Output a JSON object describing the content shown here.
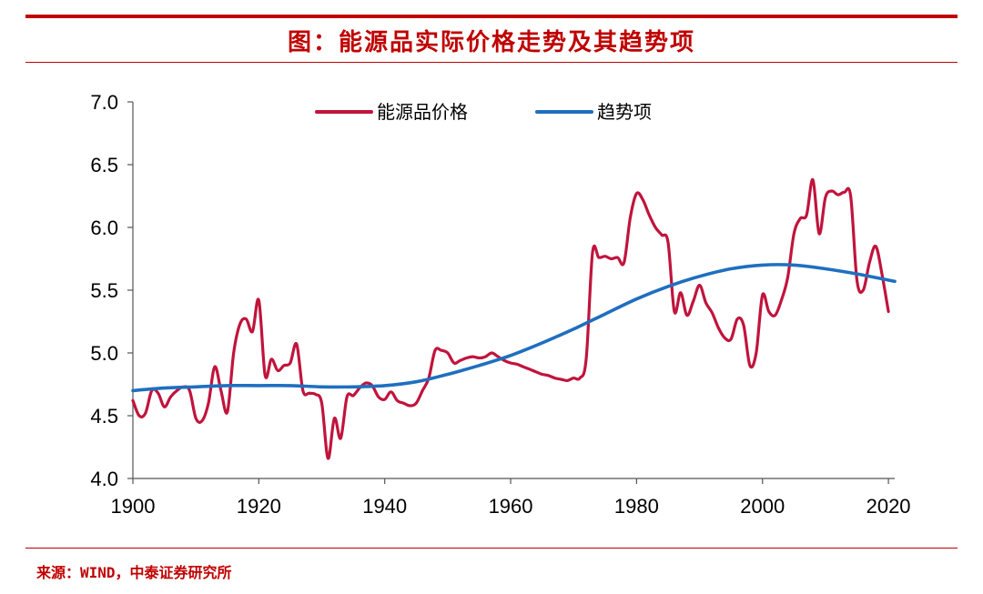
{
  "header": {
    "title": "图：能源品实际价格走势及其趋势项",
    "accent_color": "#c00000"
  },
  "footer": {
    "source": "来源：WIND，中泰证券研究所"
  },
  "chart_data": {
    "type": "line",
    "title": "图：能源品实际价格走势及其趋势项",
    "xlabel": "",
    "ylabel": "",
    "xlim": [
      1900,
      2021
    ],
    "ylim": [
      4.0,
      7.0
    ],
    "x_ticks": [
      "1900",
      "1920",
      "1940",
      "1960",
      "1980",
      "2000",
      "2020"
    ],
    "y_ticks": [
      "4.0",
      "4.5",
      "5.0",
      "5.5",
      "6.0",
      "6.5",
      "7.0"
    ],
    "grid": false,
    "legend": "top-center",
    "series": [
      {
        "name": "能源品价格",
        "color": "#c0143c",
        "x": [
          1900,
          1901,
          1902,
          1903,
          1904,
          1905,
          1906,
          1907,
          1908,
          1909,
          1910,
          1911,
          1912,
          1913,
          1914,
          1915,
          1916,
          1917,
          1918,
          1919,
          1920,
          1921,
          1922,
          1923,
          1924,
          1925,
          1926,
          1927,
          1928,
          1929,
          1930,
          1931,
          1932,
          1933,
          1934,
          1935,
          1936,
          1937,
          1938,
          1939,
          1940,
          1941,
          1942,
          1943,
          1944,
          1945,
          1946,
          1947,
          1948,
          1949,
          1950,
          1951,
          1952,
          1953,
          1954,
          1955,
          1956,
          1957,
          1958,
          1959,
          1960,
          1961,
          1962,
          1963,
          1964,
          1965,
          1966,
          1967,
          1968,
          1969,
          1970,
          1971,
          1972,
          1973,
          1974,
          1975,
          1976,
          1977,
          1978,
          1979,
          1980,
          1981,
          1982,
          1983,
          1984,
          1985,
          1986,
          1987,
          1988,
          1989,
          1990,
          1991,
          1992,
          1993,
          1994,
          1995,
          1996,
          1997,
          1998,
          1999,
          2000,
          2001,
          2002,
          2003,
          2004,
          2005,
          2006,
          2007,
          2008,
          2009,
          2010,
          2011,
          2012,
          2013,
          2014,
          2015,
          2016,
          2017,
          2018,
          2019,
          2020
        ],
        "y": [
          4.62,
          4.5,
          4.52,
          4.7,
          4.68,
          4.57,
          4.65,
          4.7,
          4.73,
          4.7,
          4.48,
          4.46,
          4.6,
          4.89,
          4.7,
          4.53,
          5.0,
          5.23,
          5.27,
          5.17,
          5.42,
          4.82,
          4.95,
          4.86,
          4.9,
          4.92,
          5.07,
          4.7,
          4.68,
          4.67,
          4.6,
          4.16,
          4.48,
          4.32,
          4.65,
          4.66,
          4.72,
          4.76,
          4.74,
          4.65,
          4.63,
          4.69,
          4.62,
          4.6,
          4.58,
          4.6,
          4.7,
          4.8,
          5.02,
          5.02,
          5.0,
          4.92,
          4.94,
          4.96,
          4.97,
          4.96,
          4.97,
          5.0,
          4.97,
          4.94,
          4.92,
          4.91,
          4.89,
          4.87,
          4.85,
          4.83,
          4.82,
          4.8,
          4.79,
          4.78,
          4.8,
          4.8,
          4.95,
          5.8,
          5.76,
          5.77,
          5.75,
          5.76,
          5.72,
          6.08,
          6.27,
          6.22,
          6.1,
          6.0,
          5.94,
          5.88,
          5.33,
          5.48,
          5.3,
          5.41,
          5.54,
          5.4,
          5.32,
          5.2,
          5.12,
          5.11,
          5.27,
          5.22,
          4.9,
          5.0,
          5.46,
          5.33,
          5.3,
          5.42,
          5.6,
          5.95,
          6.07,
          6.1,
          6.38,
          5.95,
          6.24,
          6.29,
          6.26,
          6.28,
          6.25,
          5.58,
          5.5,
          5.72,
          5.85,
          5.62,
          5.33
        ]
      },
      {
        "name": "趋势项",
        "color": "#1f6fbf",
        "x": [
          1900,
          1905,
          1910,
          1915,
          1920,
          1925,
          1930,
          1935,
          1940,
          1945,
          1950,
          1955,
          1960,
          1965,
          1970,
          1975,
          1980,
          1985,
          1990,
          1995,
          2000,
          2005,
          2010,
          2015,
          2021
        ],
        "y": [
          4.7,
          4.72,
          4.73,
          4.74,
          4.74,
          4.74,
          4.73,
          4.73,
          4.74,
          4.77,
          4.83,
          4.9,
          4.98,
          5.08,
          5.19,
          5.31,
          5.43,
          5.53,
          5.61,
          5.67,
          5.7,
          5.7,
          5.67,
          5.63,
          5.57
        ]
      }
    ]
  }
}
